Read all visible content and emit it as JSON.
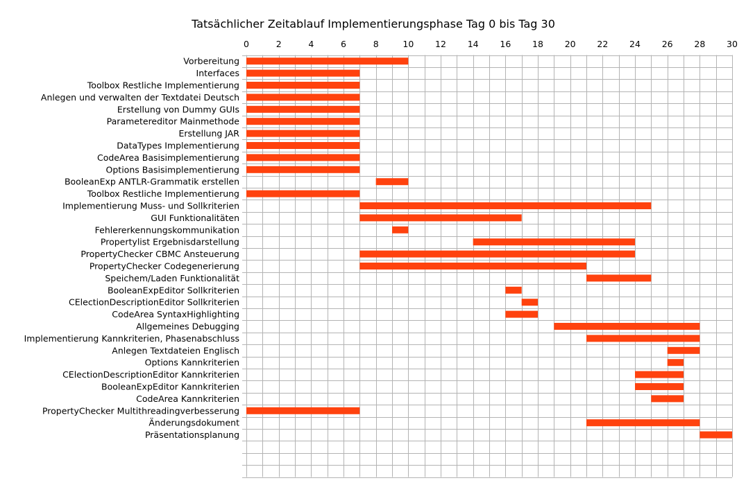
{
  "chart_data": {
    "type": "gantt",
    "title": "Tatsächlicher Zeitablauf Implementierungsphase Tag 0 bis Tag 30",
    "xlim": [
      0,
      30
    ],
    "x_ticks": [
      "0",
      "2",
      "4",
      "6",
      "8",
      "10",
      "12",
      "14",
      "16",
      "18",
      "20",
      "22",
      "24",
      "26",
      "28",
      "30"
    ],
    "grid": true,
    "bar_color": "#ff420e",
    "tasks": [
      {
        "label": "Vorbereitung",
        "start": 0,
        "end": 10
      },
      {
        "label": "Interfaces",
        "start": 0,
        "end": 7
      },
      {
        "label": "Toolbox Restliche Implementierung",
        "start": 0,
        "end": 7
      },
      {
        "label": "Anlegen und verwalten der Textdatei Deutsch",
        "start": 0,
        "end": 7
      },
      {
        "label": "Erstellung von Dummy GUIs",
        "start": 0,
        "end": 7
      },
      {
        "label": "Parametereditor Mainmethode",
        "start": 0,
        "end": 7
      },
      {
        "label": "Erstellung JAR",
        "start": 0,
        "end": 7
      },
      {
        "label": "DataTypes Implementierung",
        "start": 0,
        "end": 7
      },
      {
        "label": "CodeArea Basisimplementierung",
        "start": 0,
        "end": 7
      },
      {
        "label": "Options Basisimplementierung",
        "start": 0,
        "end": 7
      },
      {
        "label": "BooleanExp ANTLR-Grammatik erstellen",
        "start": 8,
        "end": 10
      },
      {
        "label": "Toolbox Restliche Implementierung",
        "start": 0,
        "end": 7
      },
      {
        "label": "Implementierung Muss- und Sollkriterien",
        "start": 7,
        "end": 25
      },
      {
        "label": "GUI Funktionalitäten",
        "start": 7,
        "end": 17
      },
      {
        "label": "Fehlererkennungskommunikation",
        "start": 9,
        "end": 10
      },
      {
        "label": "Propertylist Ergebnisdarstellung",
        "start": 14,
        "end": 24
      },
      {
        "label": "PropertyChecker CBMC Ansteuerung",
        "start": 7,
        "end": 24
      },
      {
        "label": "PropertyChecker Codegenerierung",
        "start": 7,
        "end": 21
      },
      {
        "label": "Speichem/Laden Funktionalität",
        "start": 21,
        "end": 25
      },
      {
        "label": "BooleanExpEditor Sollkriterien",
        "start": 16,
        "end": 17
      },
      {
        "label": "CElectionDescriptionEditor Sollkriterien",
        "start": 17,
        "end": 18
      },
      {
        "label": "CodeArea SyntaxHighlighting",
        "start": 16,
        "end": 18
      },
      {
        "label": "Allgemeines Debugging",
        "start": 19,
        "end": 28
      },
      {
        "label": "Implementierung Kannkriterien, Phasenabschluss",
        "start": 21,
        "end": 28
      },
      {
        "label": "Anlegen Textdateien Englisch",
        "start": 26,
        "end": 28
      },
      {
        "label": "Options Kannkriterien",
        "start": 26,
        "end": 27
      },
      {
        "label": "CElectionDescriptionEditor Kannkriterien",
        "start": 24,
        "end": 27
      },
      {
        "label": "BooleanExpEditor Kannkriterien",
        "start": 24,
        "end": 27
      },
      {
        "label": "CodeArea Kannkriterien",
        "start": 25,
        "end": 27
      },
      {
        "label": "PropertyChecker Multithreadingverbesserung",
        "start": 0,
        "end": 7
      },
      {
        "label": "Änderungsdokument",
        "start": 21,
        "end": 28
      },
      {
        "label": "Präsentationsplanung",
        "start": 28,
        "end": 30
      }
    ],
    "empty_rows_after": 3
  }
}
